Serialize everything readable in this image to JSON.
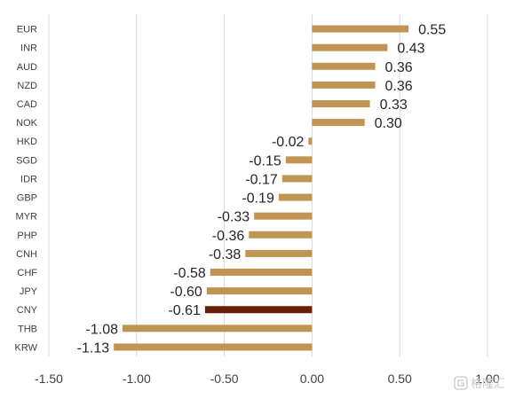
{
  "chart_data": {
    "type": "bar",
    "orientation": "horizontal",
    "categories": [
      "EUR",
      "INR",
      "AUD",
      "NZD",
      "CAD",
      "NOK",
      "HKD",
      "SGD",
      "IDR",
      "GBP",
      "MYR",
      "PHP",
      "CNH",
      "CHF",
      "JPY",
      "CNY",
      "THB",
      "KRW"
    ],
    "values": [
      0.55,
      0.43,
      0.36,
      0.36,
      0.33,
      0.3,
      -0.02,
      -0.15,
      -0.17,
      -0.19,
      -0.33,
      -0.36,
      -0.38,
      -0.58,
      -0.6,
      -0.61,
      -1.08,
      -1.13
    ],
    "value_labels": [
      "0.55",
      "0.43",
      "0.36",
      "0.36",
      "0.33",
      "0.30",
      "-0.02",
      "-0.15",
      "-0.17",
      "-0.19",
      "-0.33",
      "-0.36",
      "-0.38",
      "-0.58",
      "-0.60",
      "-0.61",
      "-1.08",
      "-1.13"
    ],
    "x_ticks": [
      -1.5,
      -1.0,
      -0.5,
      0.0,
      0.5,
      1.0
    ],
    "x_tick_labels": [
      "-1.50",
      "-1.00",
      "-0.50",
      "0.00",
      "0.50",
      "1.00"
    ],
    "xlim": [
      -1.5,
      1.0
    ],
    "grid": "vertical",
    "bar_color": "#c09553",
    "highlight_category": "CNY",
    "highlight_color": "#6b1d0c",
    "title": "",
    "xlabel": "",
    "ylabel": ""
  },
  "watermark": {
    "icon": "gelonghui-logo-icon",
    "text": "格隆汇"
  }
}
